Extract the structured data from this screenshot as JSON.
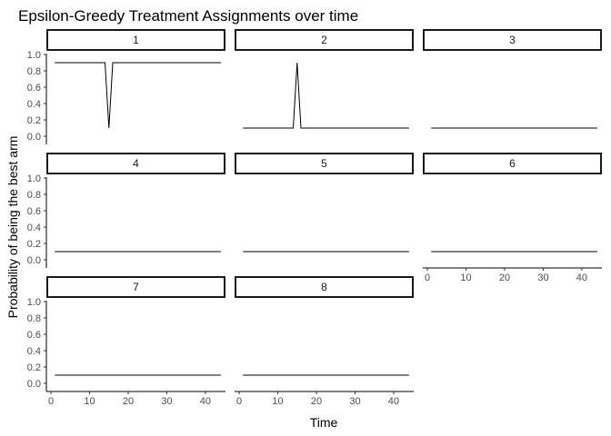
{
  "chart_data": {
    "type": "line",
    "title": "Epsilon-Greedy Treatment Assignments over time",
    "xlabel": "Time",
    "ylabel": "Probability of being the best arm",
    "xlim": [
      0,
      45
    ],
    "ylim": [
      0,
      1
    ],
    "x_ticks": [
      0,
      10,
      20,
      30,
      40
    ],
    "y_ticks": [
      0.0,
      0.2,
      0.4,
      0.6,
      0.8,
      1.0
    ],
    "y_tick_labels": [
      "0.0",
      "0.2",
      "0.4",
      "0.6",
      "0.8",
      "1.0"
    ],
    "grid": false,
    "facet_layout": {
      "columns": 3,
      "rows": 3
    },
    "panels": [
      {
        "label": "1",
        "x": [
          1,
          14,
          15,
          16,
          44
        ],
        "values": [
          0.9,
          0.9,
          0.1,
          0.9,
          0.9
        ]
      },
      {
        "label": "2",
        "x": [
          1,
          14,
          15,
          16,
          44
        ],
        "values": [
          0.1,
          0.1,
          0.9,
          0.1,
          0.1
        ]
      },
      {
        "label": "3",
        "x": [
          1,
          44
        ],
        "values": [
          0.1,
          0.1
        ]
      },
      {
        "label": "4",
        "x": [
          1,
          44
        ],
        "values": [
          0.1,
          0.1
        ]
      },
      {
        "label": "5",
        "x": [
          1,
          44
        ],
        "values": [
          0.1,
          0.1
        ]
      },
      {
        "label": "6",
        "x": [
          1,
          44
        ],
        "values": [
          0.1,
          0.1
        ]
      },
      {
        "label": "7",
        "x": [
          1,
          44
        ],
        "values": [
          0.1,
          0.1
        ]
      },
      {
        "label": "8",
        "x": [
          1,
          44
        ],
        "values": [
          0.1,
          0.1
        ]
      }
    ]
  }
}
